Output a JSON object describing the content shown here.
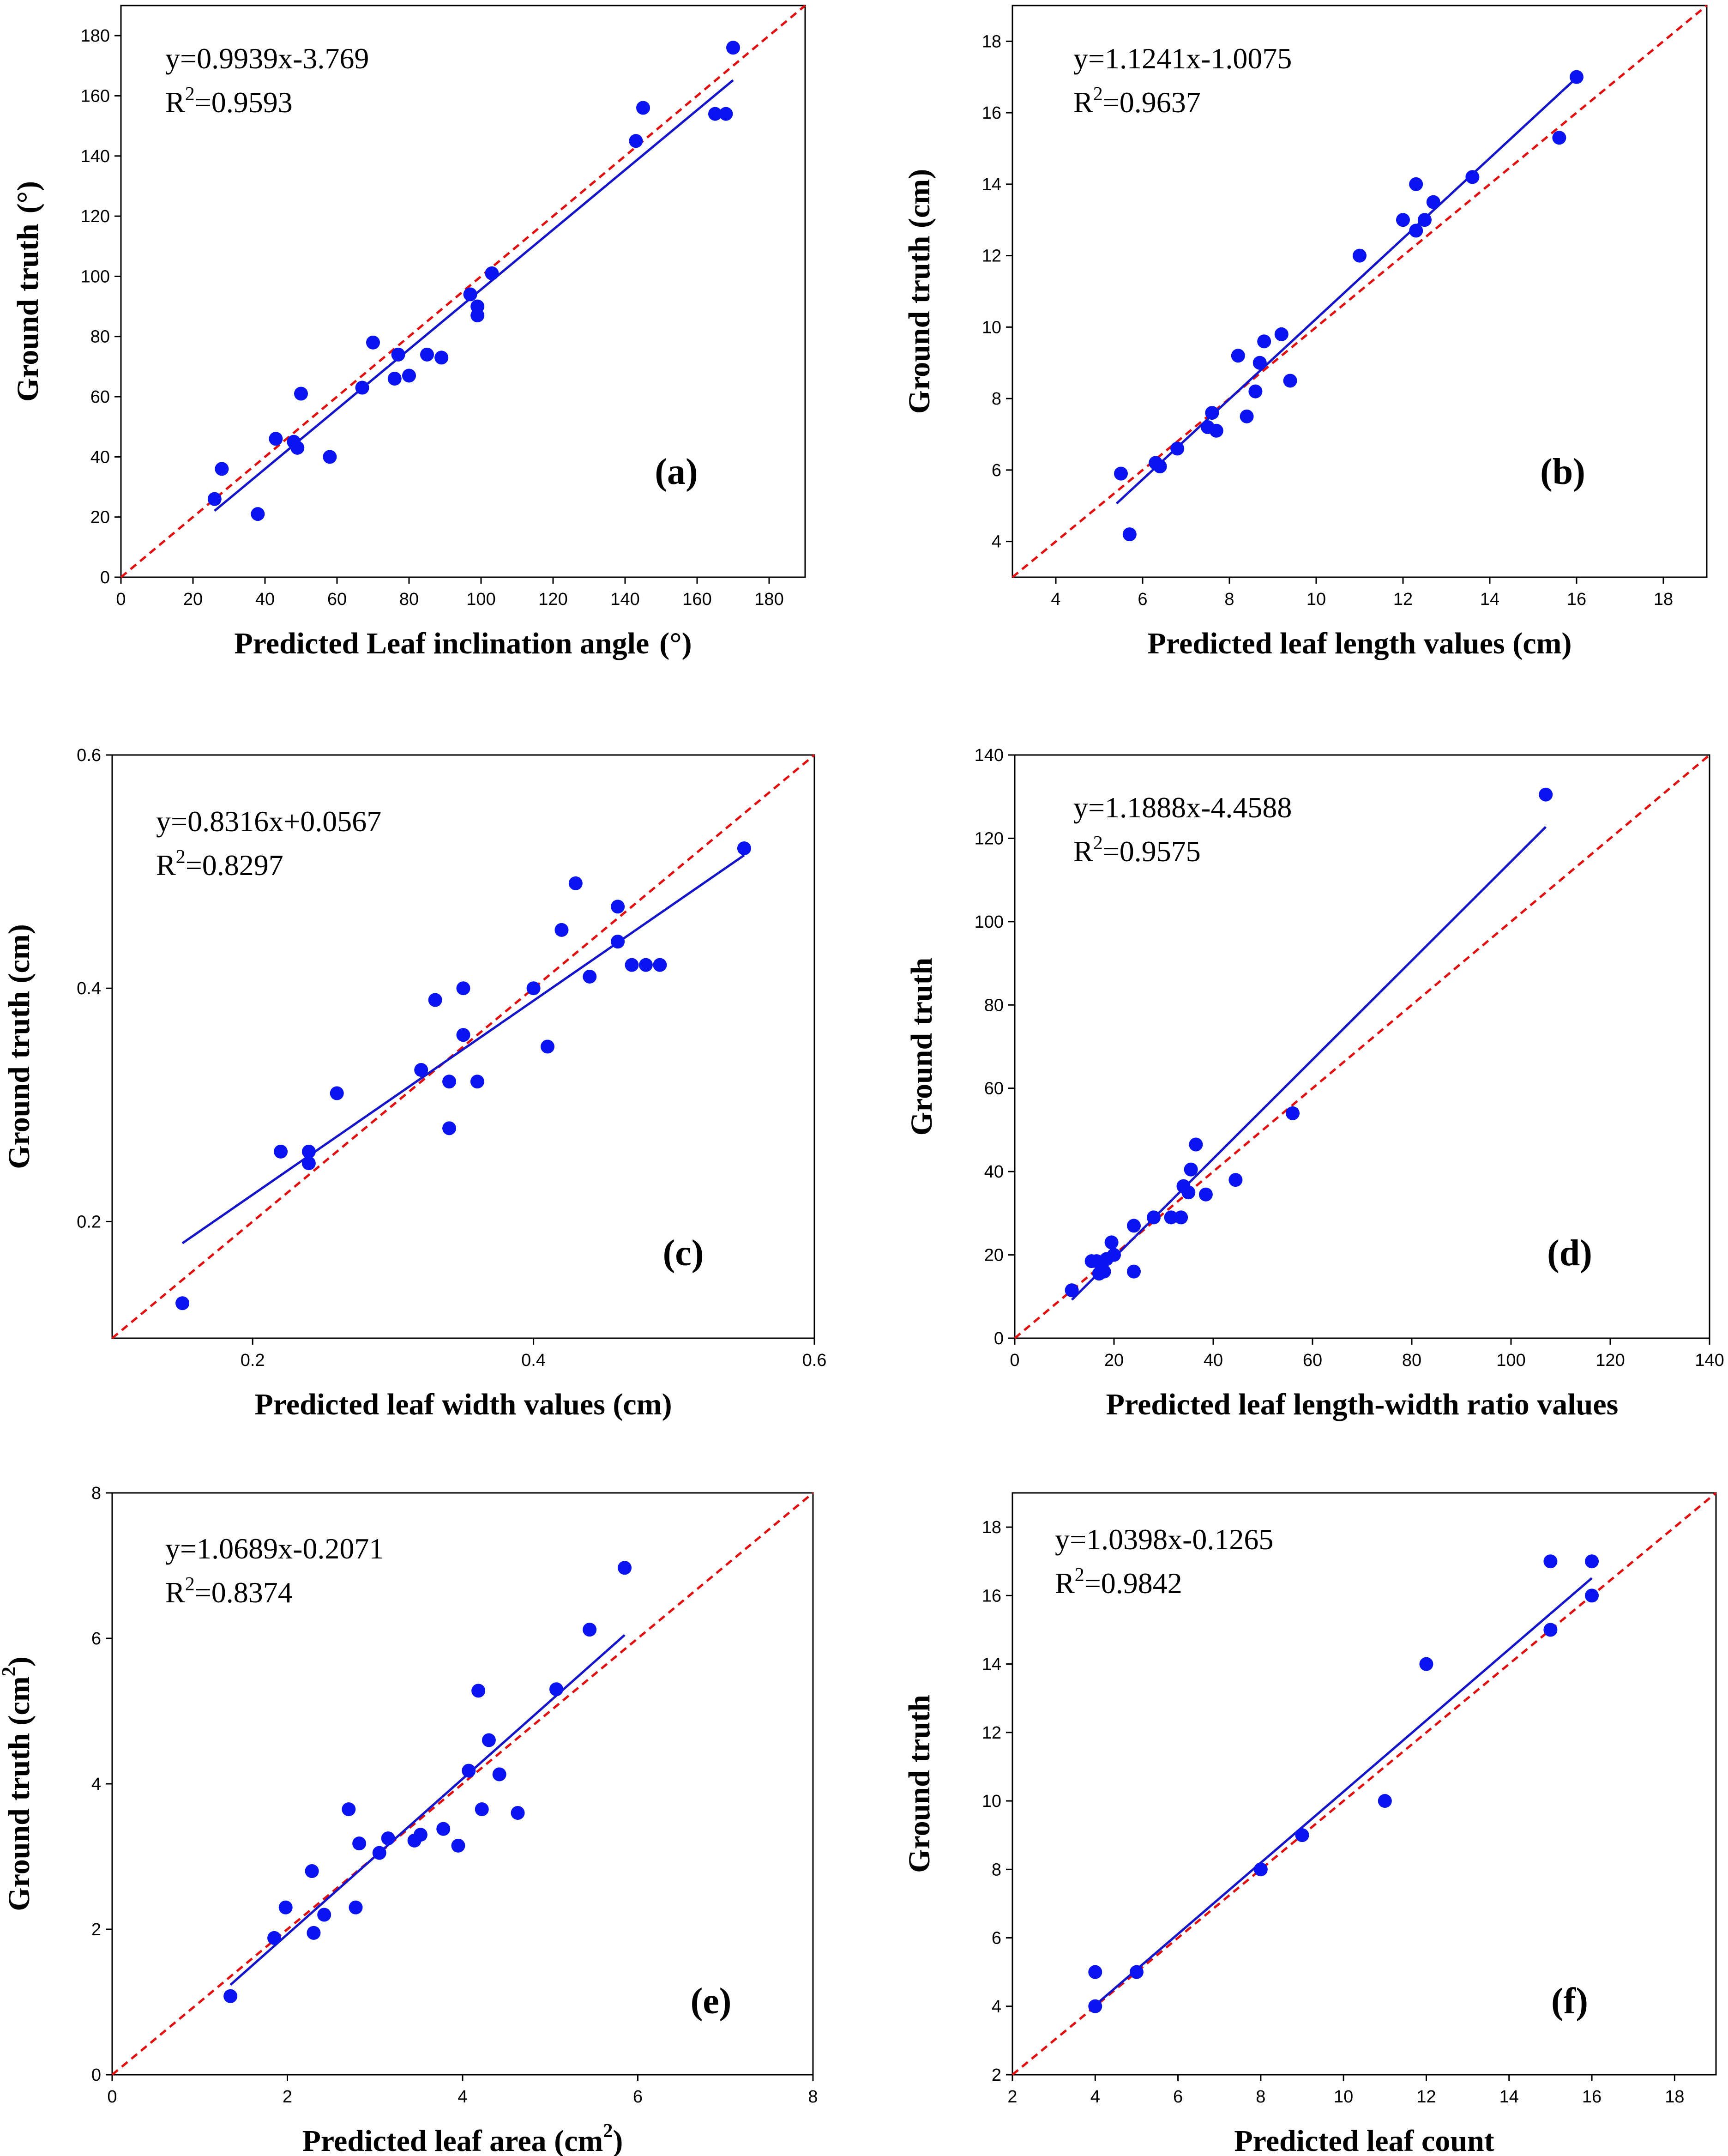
{
  "chart_data": [
    {
      "id": "a",
      "type": "scatter",
      "panel_label": "(a)",
      "xlabel": "Predicted Leaf inclination angle",
      "xlabel_unit": "(°)",
      "ylabel": "Ground truth",
      "ylabel_unit": "(°)",
      "equation": "y=0.9939x-3.769",
      "r2_prefix": "R",
      "r2_sup": "2",
      "r2_value": "=0.9593",
      "xlim": [
        0,
        190
      ],
      "ylim": [
        0,
        190
      ],
      "xticks": [
        0,
        20,
        40,
        60,
        80,
        100,
        120,
        140,
        160,
        180
      ],
      "yticks": [
        0,
        20,
        40,
        60,
        80,
        100,
        120,
        140,
        160,
        180
      ],
      "fit": {
        "slope": 0.9939,
        "intercept": -3.769,
        "x_range": [
          26,
          170
        ]
      },
      "x": [
        26,
        28,
        38,
        43,
        48,
        49,
        50,
        58,
        67,
        70,
        76,
        77,
        80,
        85,
        89,
        97,
        99,
        99,
        103,
        143,
        145,
        165,
        168,
        170
      ],
      "y": [
        26,
        36,
        21,
        46,
        45,
        43,
        61,
        40,
        63,
        78,
        66,
        74,
        67,
        74,
        73,
        94,
        90,
        87,
        101,
        145,
        156,
        154,
        154,
        176
      ]
    },
    {
      "id": "b",
      "type": "scatter",
      "panel_label": "(b)",
      "xlabel": "Predicted leaf length values (cm)",
      "xlabel_unit": "",
      "ylabel": "Ground truth (cm)",
      "ylabel_unit": "",
      "equation": "y=1.1241x-1.0075",
      "r2_prefix": "R",
      "r2_sup": "2",
      "r2_value": "=0.9637",
      "xlim": [
        3,
        19
      ],
      "ylim": [
        3,
        19
      ],
      "xticks": [
        4,
        6,
        8,
        10,
        12,
        14,
        16,
        18
      ],
      "yticks": [
        4,
        6,
        8,
        10,
        12,
        14,
        16,
        18
      ],
      "fit": {
        "slope": 1.1241,
        "intercept": -1.0075,
        "x_range": [
          5.4,
          16
        ]
      },
      "x": [
        5.5,
        5.7,
        6.3,
        6.4,
        6.8,
        7.5,
        7.6,
        7.7,
        8.2,
        8.4,
        8.6,
        8.7,
        8.8,
        9.2,
        9.4,
        11.0,
        12.0,
        12.3,
        12.3,
        12.5,
        12.7,
        13.6,
        15.6,
        16.0
      ],
      "y": [
        5.9,
        4.2,
        6.2,
        6.1,
        6.6,
        7.2,
        7.6,
        7.1,
        9.2,
        7.5,
        8.2,
        9.0,
        9.6,
        9.8,
        8.5,
        12.0,
        13.0,
        12.7,
        14.0,
        13.0,
        13.5,
        14.2,
        15.3,
        17.0
      ]
    },
    {
      "id": "c",
      "type": "scatter",
      "panel_label": "(c)",
      "xlabel": "Predicted leaf width values (cm)",
      "xlabel_unit": "",
      "ylabel": "Ground truth (cm)",
      "ylabel_unit": "",
      "equation": "y=0.8316x+0.0567",
      "r2_prefix": "R",
      "r2_sup": "2",
      "r2_value": "=0.8297",
      "xlim": [
        0.1,
        0.6
      ],
      "ylim": [
        0.1,
        0.6
      ],
      "xticks": [
        0.2,
        0.4,
        0.6
      ],
      "yticks": [
        0.2,
        0.4,
        0.6
      ],
      "fit": {
        "slope": 0.8316,
        "intercept": 0.0567,
        "x_range": [
          0.15,
          0.55
        ]
      },
      "x": [
        0.15,
        0.22,
        0.24,
        0.24,
        0.26,
        0.32,
        0.33,
        0.34,
        0.34,
        0.35,
        0.35,
        0.36,
        0.4,
        0.41,
        0.42,
        0.43,
        0.44,
        0.46,
        0.46,
        0.47,
        0.48,
        0.49,
        0.55
      ],
      "y": [
        0.13,
        0.26,
        0.26,
        0.25,
        0.31,
        0.33,
        0.39,
        0.32,
        0.28,
        0.4,
        0.36,
        0.32,
        0.4,
        0.35,
        0.45,
        0.49,
        0.41,
        0.47,
        0.44,
        0.42,
        0.42,
        0.42,
        0.52
      ]
    },
    {
      "id": "d",
      "type": "scatter",
      "panel_label": "(d)",
      "xlabel": "Predicted leaf length-width ratio values",
      "xlabel_unit": "",
      "ylabel": "Ground truth",
      "ylabel_unit": "",
      "equation": "y=1.1888x-4.4588",
      "r2_prefix": "R",
      "r2_sup": "2",
      "r2_value": "=0.9575",
      "xlim": [
        0,
        140
      ],
      "ylim": [
        0,
        140
      ],
      "xticks": [
        0,
        20,
        40,
        60,
        80,
        100,
        120,
        140
      ],
      "yticks": [
        0,
        20,
        40,
        60,
        80,
        100,
        120,
        140
      ],
      "fit": {
        "slope": 1.1888,
        "intercept": -4.4588,
        "x_range": [
          11.5,
          107
        ]
      },
      "x": [
        11.5,
        15.5,
        16.5,
        17.0,
        18.0,
        18.5,
        19.5,
        20.0,
        24.0,
        24.0,
        28.0,
        31.5,
        33.5,
        34.0,
        35.0,
        35.5,
        36.5,
        38.5,
        44.5,
        56.0,
        107.0
      ],
      "y": [
        11.5,
        18.5,
        18.5,
        15.5,
        16.0,
        19.0,
        23.0,
        20.0,
        27.0,
        16.0,
        29.0,
        29.0,
        29.0,
        36.5,
        35.0,
        40.5,
        46.5,
        34.5,
        38.0,
        54.0,
        130.5
      ]
    },
    {
      "id": "e",
      "type": "scatter",
      "panel_label": "(e)",
      "xlabel": "Predicted leaf area (cm",
      "xlabel_unit": ")",
      "xlabel_sup": "2",
      "ylabel": "Ground truth (cm",
      "ylabel_unit": ")",
      "ylabel_sup": "2",
      "equation": "y=1.0689x-0.2071",
      "r2_prefix": "R",
      "r2_sup": "2",
      "r2_value": "=0.8374",
      "xlim": [
        0,
        8
      ],
      "ylim": [
        0,
        8
      ],
      "xticks": [
        0,
        2,
        4,
        6,
        8
      ],
      "yticks": [
        0,
        2,
        4,
        6,
        8
      ],
      "fit": {
        "slope": 1.0689,
        "intercept": -0.2071,
        "x_range": [
          1.35,
          5.85
        ]
      },
      "x": [
        1.35,
        1.85,
        1.98,
        2.28,
        2.3,
        2.42,
        2.7,
        2.78,
        2.82,
        3.05,
        3.15,
        3.45,
        3.52,
        3.78,
        3.95,
        4.07,
        4.18,
        4.22,
        4.3,
        4.42,
        4.63,
        5.07,
        5.45,
        5.85
      ],
      "y": [
        1.08,
        1.88,
        2.3,
        2.8,
        1.95,
        2.2,
        3.65,
        2.3,
        3.18,
        3.05,
        3.25,
        3.22,
        3.3,
        3.38,
        3.15,
        4.18,
        5.28,
        3.65,
        4.6,
        4.13,
        3.6,
        5.3,
        6.12,
        6.97
      ]
    },
    {
      "id": "f",
      "type": "scatter",
      "panel_label": "(f)",
      "xlabel": "Predicted leaf count",
      "xlabel_unit": "",
      "ylabel": "Ground truth",
      "ylabel_unit": "",
      "equation": "y=1.0398x-0.1265",
      "r2_prefix": "R",
      "r2_sup": "2",
      "r2_value": "=0.9842",
      "xlim": [
        2,
        19
      ],
      "ylim": [
        2,
        19
      ],
      "xticks": [
        2,
        4,
        6,
        8,
        10,
        12,
        14,
        16,
        18
      ],
      "yticks": [
        2,
        4,
        6,
        8,
        10,
        12,
        14,
        16,
        18
      ],
      "fit": {
        "slope": 1.0398,
        "intercept": -0.1265,
        "x_range": [
          4,
          16
        ]
      },
      "x": [
        4,
        4,
        5,
        8,
        9,
        11,
        12,
        15,
        15,
        16,
        16
      ],
      "y": [
        5,
        4,
        5,
        8,
        9,
        10,
        14,
        17,
        15,
        17,
        16
      ]
    }
  ],
  "colors": {
    "points": "#0a14f0",
    "fit_line": "#1414c8",
    "identity_line": "#e01010",
    "axes": "#000000"
  }
}
